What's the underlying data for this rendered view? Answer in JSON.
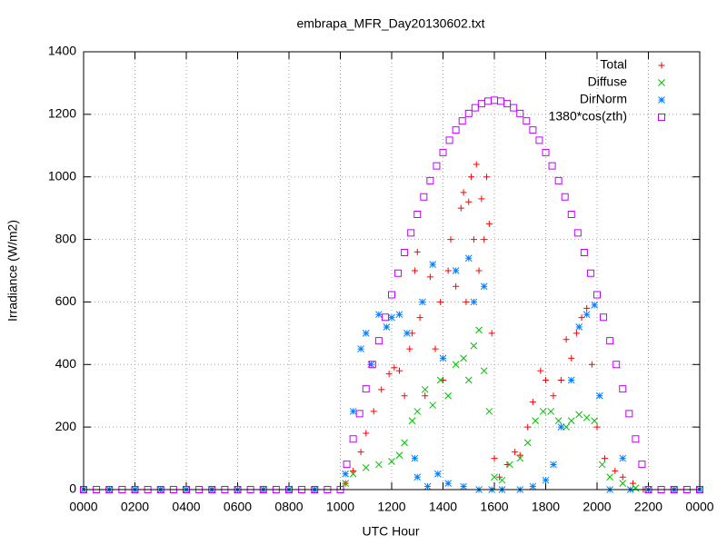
{
  "chart_data": {
    "type": "scatter",
    "title": "embrapa_MFR_Day20130602.txt",
    "x_label": "UTC Hour",
    "y_label": "Irradiance (W/m2)",
    "xlim": [
      0,
      24
    ],
    "ylim": [
      0,
      1400
    ],
    "xticks": [
      {
        "value": 0,
        "label": "0000"
      },
      {
        "value": 2,
        "label": "0200"
      },
      {
        "value": 4,
        "label": "0400"
      },
      {
        "value": 6,
        "label": "0600"
      },
      {
        "value": 8,
        "label": "0800"
      },
      {
        "value": 10,
        "label": "1000"
      },
      {
        "value": 12,
        "label": "1200"
      },
      {
        "value": 14,
        "label": "1400"
      },
      {
        "value": 16,
        "label": "1600"
      },
      {
        "value": 18,
        "label": "1800"
      },
      {
        "value": 20,
        "label": "2000"
      },
      {
        "value": 22,
        "label": "2200"
      },
      {
        "value": 24,
        "label": "0000"
      }
    ],
    "yticks": [
      0,
      200,
      400,
      600,
      800,
      1000,
      1200,
      1400
    ],
    "grid": true,
    "legend": "top-right",
    "series": [
      {
        "name": "Total",
        "color": "#ff0000",
        "marker": "plus",
        "x": [
          0,
          1,
          2,
          3,
          4,
          5,
          6,
          7,
          8,
          9,
          10.2,
          10.5,
          10.8,
          11.0,
          11.3,
          11.6,
          11.9,
          12.1,
          12.3,
          12.5,
          12.7,
          12.8,
          12.9,
          13.0,
          13.1,
          13.3,
          13.5,
          13.7,
          13.9,
          14.0,
          14.2,
          14.3,
          14.5,
          14.7,
          14.8,
          14.9,
          15.0,
          15.1,
          15.2,
          15.3,
          15.4,
          15.5,
          15.6,
          15.7,
          15.8,
          15.9,
          16.0,
          16.2,
          16.5,
          16.8,
          17.0,
          17.3,
          17.5,
          17.8,
          18.0,
          18.3,
          18.6,
          18.8,
          19.0,
          19.2,
          19.4,
          19.6,
          19.8,
          20.0,
          20.3,
          20.7,
          21.0,
          21.4,
          21.8,
          22,
          23,
          24
        ],
        "values": [
          0,
          0,
          0,
          0,
          0,
          0,
          0,
          0,
          0,
          0,
          20,
          60,
          120,
          180,
          250,
          320,
          370,
          390,
          380,
          300,
          450,
          500,
          700,
          760,
          550,
          300,
          680,
          450,
          600,
          350,
          700,
          800,
          650,
          900,
          950,
          600,
          920,
          1000,
          800,
          1040,
          700,
          930,
          800,
          1000,
          850,
          500,
          100,
          40,
          80,
          120,
          110,
          200,
          280,
          380,
          350,
          300,
          350,
          480,
          420,
          500,
          550,
          580,
          400,
          200,
          100,
          60,
          40,
          20,
          0,
          0,
          0,
          0
        ]
      },
      {
        "name": "Diffuse",
        "color": "#00c000",
        "marker": "cross",
        "x": [
          0,
          1,
          2,
          3,
          4,
          5,
          6,
          7,
          8,
          9,
          10.2,
          10.5,
          11.0,
          11.5,
          12.0,
          12.3,
          12.5,
          12.8,
          13.0,
          13.3,
          13.6,
          13.9,
          14.2,
          14.5,
          14.8,
          15.0,
          15.2,
          15.4,
          15.6,
          15.8,
          16.0,
          16.3,
          16.6,
          17.0,
          17.3,
          17.6,
          17.9,
          18.2,
          18.5,
          18.8,
          19.0,
          19.3,
          19.6,
          19.9,
          20.2,
          20.5,
          21.0,
          21.5,
          22,
          23,
          24
        ],
        "values": [
          0,
          0,
          0,
          0,
          0,
          0,
          0,
          0,
          0,
          0,
          20,
          50,
          70,
          80,
          90,
          110,
          150,
          220,
          250,
          320,
          270,
          350,
          300,
          400,
          420,
          350,
          460,
          510,
          380,
          250,
          40,
          30,
          80,
          100,
          150,
          220,
          250,
          250,
          220,
          200,
          220,
          240,
          230,
          220,
          80,
          40,
          20,
          5,
          0,
          0,
          0
        ]
      },
      {
        "name": "DirNorm",
        "color": "#0080ff",
        "marker": "star",
        "x": [
          0,
          1,
          2,
          3,
          4,
          5,
          6,
          7,
          8,
          9,
          10.2,
          10.5,
          10.8,
          11.0,
          11.2,
          11.5,
          11.8,
          12.0,
          12.3,
          12.6,
          12.9,
          13.0,
          13.2,
          13.4,
          13.6,
          13.8,
          14.0,
          14.2,
          14.5,
          14.8,
          15.0,
          15.2,
          15.4,
          15.6,
          15.9,
          16.3,
          17.0,
          17.5,
          18.0,
          18.3,
          18.6,
          19.0,
          19.3,
          19.6,
          19.9,
          20.1,
          20.5,
          21.0,
          21.3,
          22,
          23,
          24
        ],
        "values": [
          0,
          0,
          0,
          0,
          0,
          0,
          0,
          0,
          0,
          0,
          50,
          250,
          450,
          500,
          400,
          560,
          520,
          550,
          560,
          500,
          100,
          40,
          600,
          10,
          720,
          50,
          420,
          20,
          700,
          10,
          740,
          600,
          0,
          650,
          0,
          0,
          0,
          10,
          30,
          80,
          200,
          350,
          520,
          560,
          590,
          300,
          0,
          100,
          0,
          0,
          0,
          0
        ]
      },
      {
        "name": "1380*cos(zth)",
        "color": "#c000ff",
        "marker": "square",
        "x": [
          0,
          0.5,
          1,
          1.5,
          2,
          2.5,
          3,
          3.5,
          4,
          4.5,
          5,
          5.5,
          6,
          6.5,
          7,
          7.5,
          8,
          8.5,
          9,
          9.5,
          10,
          10.25,
          10.5,
          10.75,
          11,
          11.25,
          11.5,
          11.75,
          12,
          12.25,
          12.5,
          12.75,
          13,
          13.25,
          13.5,
          13.75,
          14,
          14.25,
          14.5,
          14.75,
          15,
          15.25,
          15.5,
          15.75,
          16,
          16.25,
          16.5,
          16.75,
          17,
          17.25,
          17.5,
          17.75,
          18,
          18.25,
          18.5,
          18.75,
          19,
          19.25,
          19.5,
          19.75,
          20,
          20.25,
          20.5,
          20.75,
          21,
          21.25,
          21.5,
          21.75,
          22,
          22.5,
          23,
          23.5,
          24
        ],
        "values": [
          0,
          0,
          0,
          0,
          0,
          0,
          0,
          0,
          0,
          0,
          0,
          0,
          0,
          0,
          0,
          0,
          0,
          0,
          0,
          0,
          0,
          81,
          162,
          243,
          322,
          400,
          476,
          551,
          623,
          692,
          758,
          821,
          880,
          936,
          988,
          1035,
          1078,
          1117,
          1150,
          1179,
          1203,
          1221,
          1234,
          1242,
          1245,
          1242,
          1234,
          1221,
          1203,
          1179,
          1150,
          1117,
          1078,
          1035,
          988,
          936,
          880,
          821,
          758,
          692,
          623,
          551,
          476,
          400,
          322,
          243,
          162,
          81,
          0,
          0,
          0,
          0,
          0
        ]
      }
    ]
  }
}
